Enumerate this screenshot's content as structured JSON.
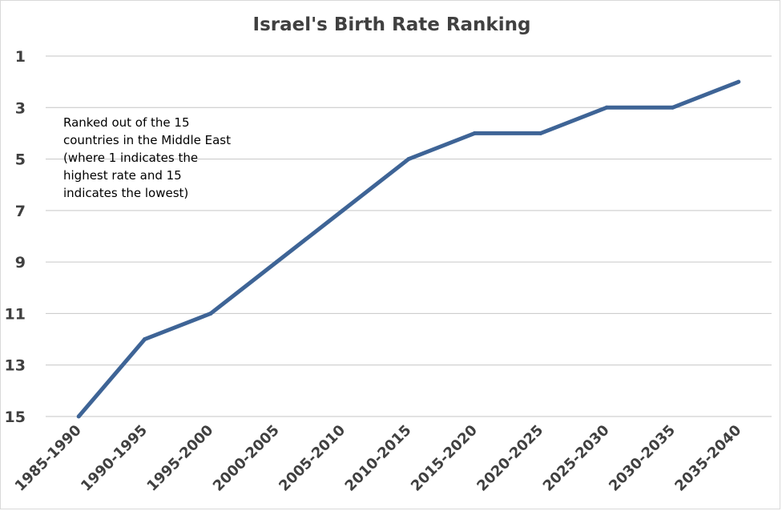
{
  "chart_data": {
    "type": "line",
    "title": "Israel's Birth Rate Ranking",
    "xlabel": "",
    "ylabel": "",
    "categories": [
      "1985-1990",
      "1990-1995",
      "1995-2000",
      "2000-2005",
      "2005-2010",
      "2010-2015",
      "2015-2020",
      "2020-2025",
      "2025-2030",
      "2030-2035",
      "2035-2040"
    ],
    "series": [
      {
        "values": [
          15,
          12,
          11,
          9,
          7,
          5,
          4,
          4,
          3,
          3,
          2
        ]
      }
    ],
    "y_ticks": [
      "1",
      "3",
      "5",
      "7",
      "9",
      "11",
      "13",
      "15"
    ],
    "ylim": [
      1,
      15
    ],
    "y_reversed": true,
    "grid": true,
    "annotation": [
      "Ranked out of the 15",
      "countries in the Middle East",
      "(where 1 indicates the",
      "highest rate and 15",
      "indicates the lowest)"
    ],
    "line_color": "#3e6496"
  }
}
